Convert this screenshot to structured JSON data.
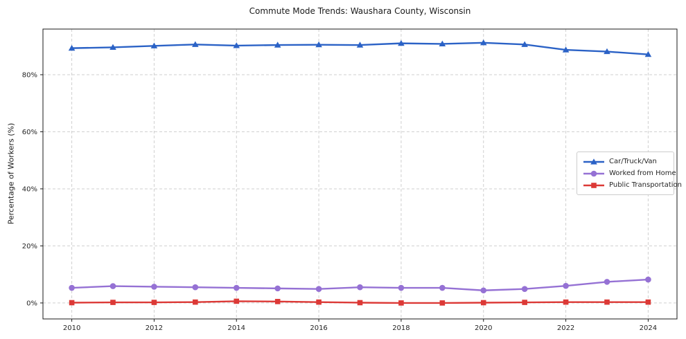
{
  "chart_data": {
    "type": "line",
    "title": "Commute Mode Trends: Waushara County, Wisconsin",
    "xlabel": "",
    "ylabel": "Percentage of Workers (%)",
    "x": [
      2010,
      2011,
      2012,
      2013,
      2014,
      2015,
      2016,
      2017,
      2018,
      2019,
      2020,
      2021,
      2022,
      2023,
      2024
    ],
    "series": [
      {
        "name": "Car/Truck/Van",
        "color": "#2b62c6",
        "marker": "triangle",
        "values": [
          89.3,
          89.6,
          90.1,
          90.6,
          90.2,
          90.4,
          90.5,
          90.4,
          91.0,
          90.8,
          91.2,
          90.6,
          88.7,
          88.1,
          87.1
        ]
      },
      {
        "name": "Worked from Home",
        "color": "#9571d4",
        "marker": "circle",
        "values": [
          5.3,
          5.9,
          5.7,
          5.5,
          5.3,
          5.1,
          4.9,
          5.5,
          5.3,
          5.3,
          4.4,
          4.9,
          6.0,
          7.4,
          8.2
        ]
      },
      {
        "name": "Public Transportation",
        "color": "#dc3936",
        "marker": "square",
        "values": [
          0.1,
          0.2,
          0.2,
          0.3,
          0.6,
          0.5,
          0.3,
          0.1,
          0.0,
          0.0,
          0.1,
          0.2,
          0.3,
          0.3,
          0.3
        ]
      }
    ],
    "xticks": [
      2010,
      2012,
      2014,
      2016,
      2018,
      2020,
      2022,
      2024
    ],
    "xtick_labels": [
      "2010",
      "2012",
      "2014",
      "2016",
      "2018",
      "2020",
      "2022",
      "2024"
    ],
    "yticks": [
      0,
      20,
      40,
      60,
      80
    ],
    "ytick_labels": [
      "0%",
      "20%",
      "40%",
      "60%",
      "80%"
    ],
    "xlim": [
      2009.3,
      2024.7
    ],
    "ylim": [
      -5.6,
      96.0
    ],
    "grid": true,
    "grid_color": "#cfcfcf",
    "spine_color": "#1a1a1a",
    "legend_position": "center right"
  }
}
